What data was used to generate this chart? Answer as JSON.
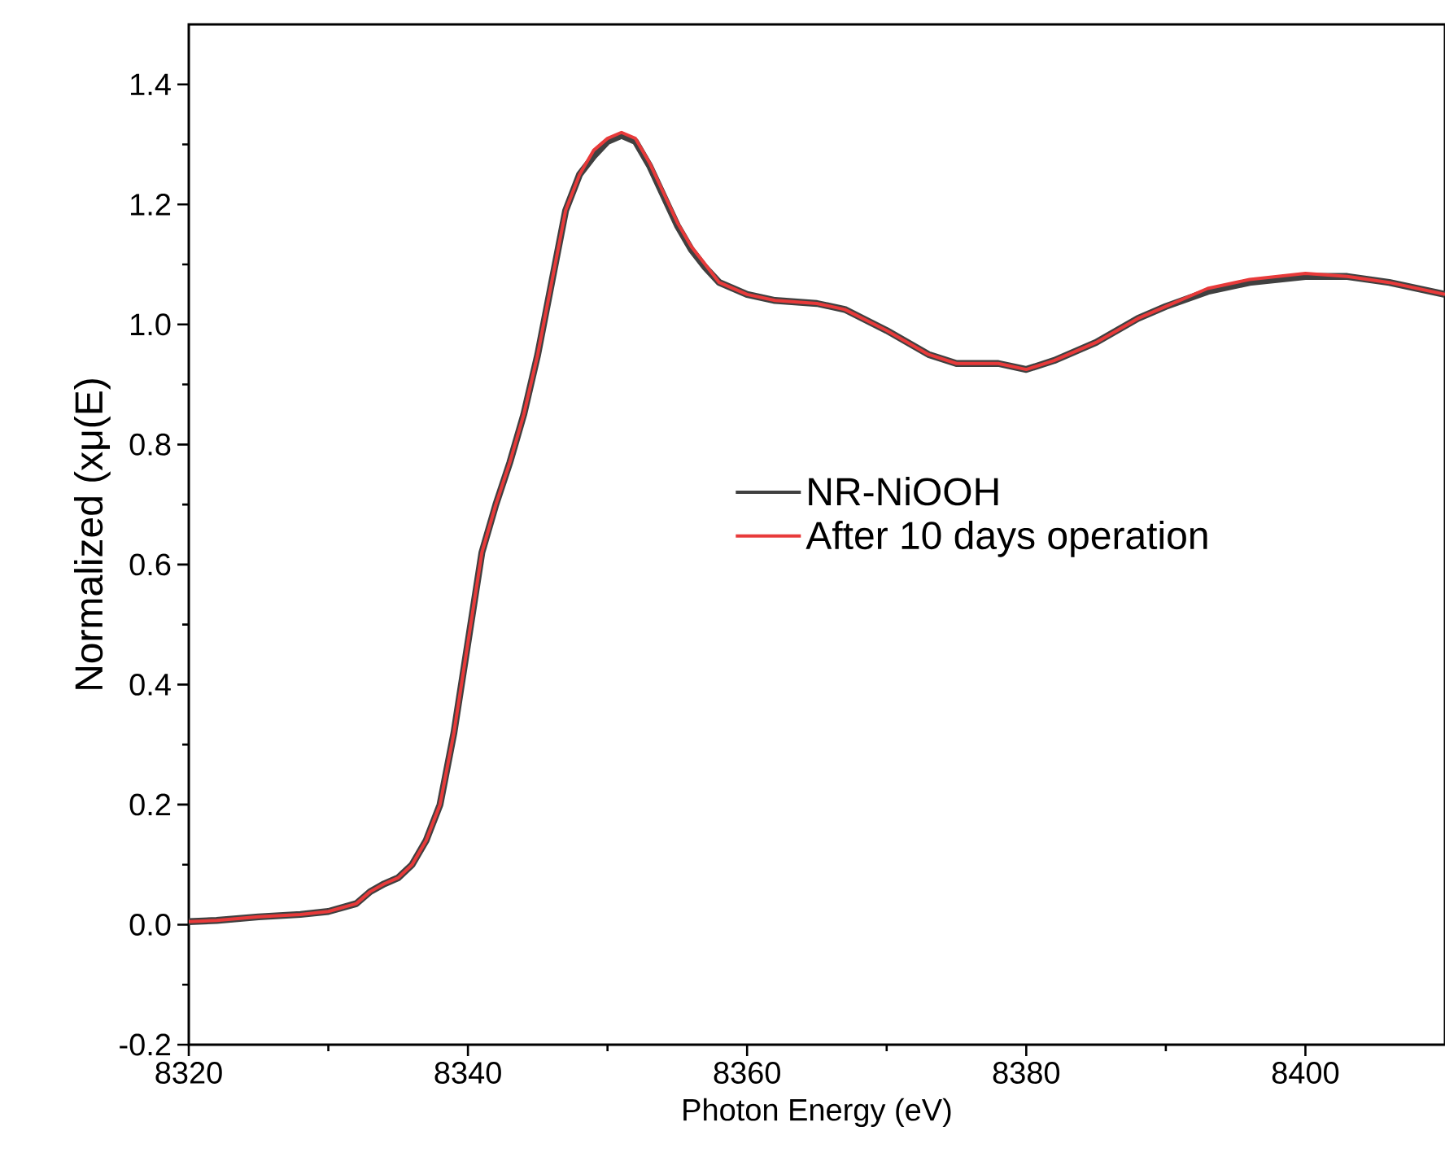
{
  "chart_data": {
    "type": "line",
    "xlabel": "Photon Energy (eV)",
    "ylabel": "Normalized (xμ(E)",
    "x": [
      8320,
      8322,
      8325,
      8328,
      8330,
      8332,
      8333,
      8334,
      8335,
      8336,
      8337,
      8338,
      8339,
      8340,
      8341,
      8342,
      8343,
      8344,
      8345,
      8346,
      8347,
      8348,
      8349,
      8350,
      8351,
      8352,
      8353,
      8354,
      8355,
      8356,
      8357,
      8358,
      8360,
      8362,
      8365,
      8367,
      8370,
      8373,
      8375,
      8378,
      8380,
      8382,
      8385,
      8388,
      8390,
      8393,
      8396,
      8400,
      8403,
      8406,
      8410
    ],
    "series": [
      {
        "name": "NR-NiOOH",
        "color": "#404040",
        "values": [
          0.005,
          0.007,
          0.013,
          0.017,
          0.022,
          0.035,
          0.055,
          0.068,
          0.078,
          0.1,
          0.14,
          0.2,
          0.32,
          0.47,
          0.62,
          0.7,
          0.77,
          0.85,
          0.95,
          1.07,
          1.19,
          1.25,
          1.28,
          1.305,
          1.315,
          1.305,
          1.265,
          1.215,
          1.165,
          1.125,
          1.095,
          1.07,
          1.05,
          1.04,
          1.035,
          1.025,
          0.99,
          0.95,
          0.935,
          0.935,
          0.925,
          0.94,
          0.97,
          1.01,
          1.03,
          1.055,
          1.07,
          1.08,
          1.08,
          1.07,
          1.05
        ]
      },
      {
        "name": "After 10 days operation",
        "color": "#e83a3a",
        "values": [
          0.005,
          0.007,
          0.013,
          0.017,
          0.022,
          0.035,
          0.055,
          0.068,
          0.078,
          0.1,
          0.14,
          0.2,
          0.32,
          0.47,
          0.62,
          0.7,
          0.77,
          0.85,
          0.95,
          1.07,
          1.19,
          1.25,
          1.29,
          1.31,
          1.32,
          1.31,
          1.27,
          1.22,
          1.17,
          1.13,
          1.1,
          1.07,
          1.05,
          1.04,
          1.035,
          1.025,
          0.99,
          0.95,
          0.935,
          0.935,
          0.925,
          0.94,
          0.97,
          1.01,
          1.03,
          1.06,
          1.075,
          1.085,
          1.08,
          1.07,
          1.05
        ]
      }
    ],
    "xlim": [
      8320,
      8410
    ],
    "ylim": [
      -0.2,
      1.5
    ],
    "xticks": [
      8320,
      8340,
      8360,
      8380,
      8400
    ],
    "yticks": [
      -0.2,
      {
        "value": 0,
        "label": "0.0"
      },
      0.2,
      0.4,
      0.6,
      0.8,
      {
        "value": 1,
        "label": "1.0"
      },
      1.2,
      1.4
    ],
    "legend": "right",
    "grid": false,
    "marker": "none",
    "line_style": "solid"
  }
}
